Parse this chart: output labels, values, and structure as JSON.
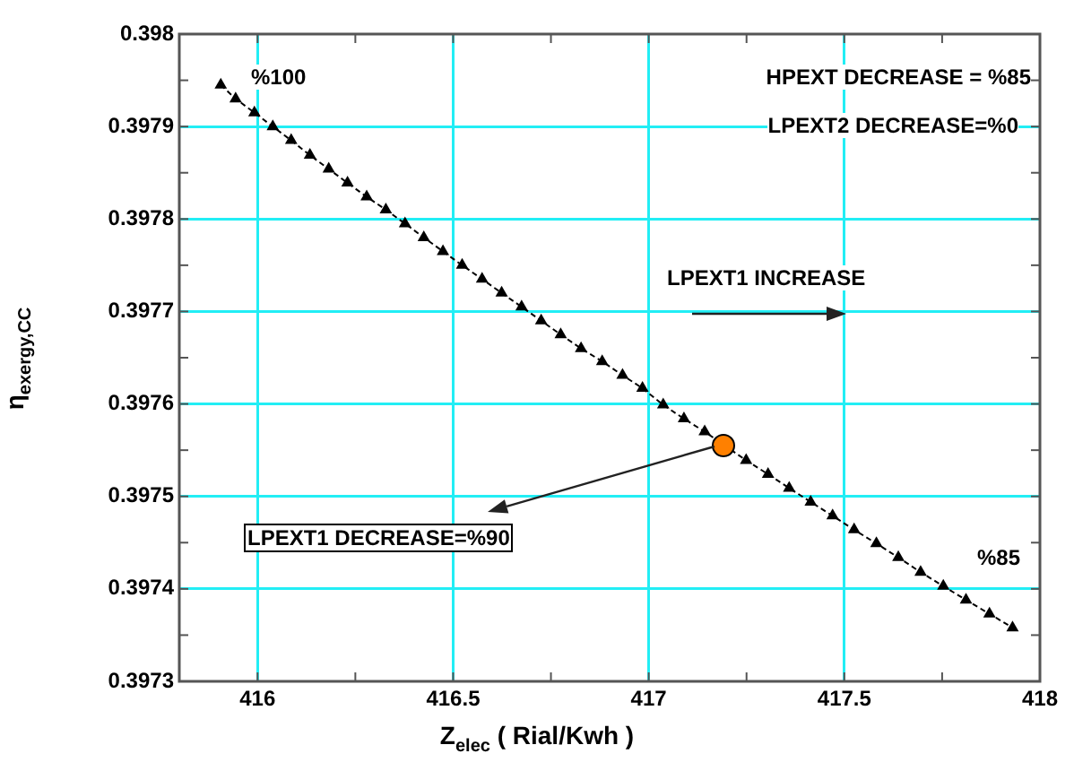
{
  "chart_data": {
    "type": "line",
    "xlabel": "Z$_{elec}$ ( Rial/Kwh )",
    "ylabel": "η$_{exergy,CC}$",
    "xlim": [
      415.8,
      418
    ],
    "xticks": [
      416,
      {
        "value": 416.25,
        "label": null
      },
      416.5,
      {
        "value": 416.75,
        "label": null
      },
      417,
      {
        "value": 417.25,
        "label": null
      },
      417.5,
      {
        "value": 417.75,
        "label": null
      },
      418
    ],
    "ylim": [
      0.3973,
      0.398
    ],
    "yticks": [
      0.3973,
      {
        "value": 0.39735,
        "label": null
      },
      0.3974,
      {
        "value": 0.39745,
        "label": null
      },
      0.3975,
      {
        "value": 0.39755,
        "label": null
      },
      0.3976,
      {
        "value": 0.39765,
        "label": null
      },
      0.3977,
      {
        "value": 0.39775,
        "label": null
      },
      0.3978,
      {
        "value": 0.39785,
        "label": null
      },
      0.3979,
      {
        "value": 0.39795,
        "label": null
      },
      0.398
    ],
    "grid": true,
    "legend": false,
    "series": [
      {
        "color": "#000000",
        "marker": "triangle",
        "line_style": "dashed",
        "x": [
          415.906,
          415.944,
          415.992,
          416.039,
          416.086,
          416.134,
          416.182,
          416.23,
          416.279,
          416.328,
          416.377,
          416.425,
          416.474,
          416.523,
          416.574,
          416.624,
          416.675,
          416.725,
          416.775,
          416.827,
          416.881,
          416.933,
          416.984,
          417.037,
          417.09,
          417.143,
          417.249,
          417.305,
          417.359,
          417.414,
          417.47,
          417.525,
          417.582,
          417.638,
          417.695,
          417.753,
          417.811,
          417.871,
          417.93
        ],
        "values": [
          0.397945,
          0.39793,
          0.397915,
          0.3979,
          0.397885,
          0.397869,
          0.397854,
          0.397839,
          0.397824,
          0.39781,
          0.397795,
          0.39778,
          0.397765,
          0.39775,
          0.397735,
          0.39772,
          0.397705,
          0.39769,
          0.397675,
          0.39766,
          0.397646,
          0.397631,
          0.397617,
          0.397599,
          0.397584,
          0.39757,
          0.397539,
          0.397524,
          0.397509,
          0.397494,
          0.397479,
          0.397464,
          0.397449,
          0.397434,
          0.397418,
          0.397403,
          0.397388,
          0.397373,
          0.397358
        ]
      },
      {
        "type": "scatter",
        "color": "#ff8000",
        "marker": "circle",
        "x": [
          417.191
        ],
        "values": [
          0.397555
        ]
      }
    ],
    "annotations": [
      "%100",
      "HPEXT DECREASE = %85",
      "LPEXT2 DECREASE=%0",
      "LPEXT1 INCREASE",
      {
        "text": "LPEXT1 DECREASE=%90",
        "x": 417.191,
        "y": 0.397555
      },
      "%85"
    ]
  }
}
